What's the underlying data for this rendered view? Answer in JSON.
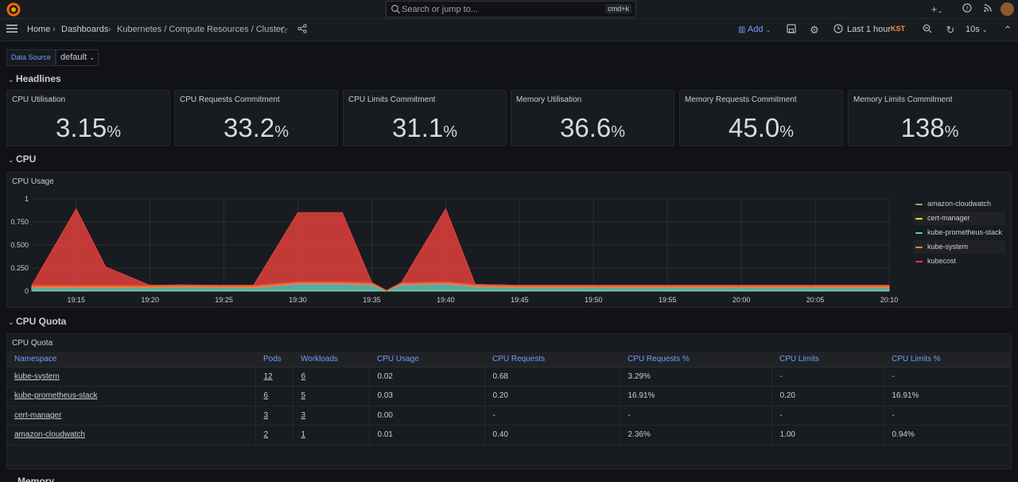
{
  "topbar": {
    "search_placeholder": "Search or jump to...",
    "search_shortcut": "cmd+k",
    "plus_icon": "plus-icon",
    "help_icon": "help-icon",
    "news_icon": "rss-icon"
  },
  "nav": {
    "breadcrumbs": [
      "Home",
      "Dashboards",
      "Kubernetes / Compute Resources / Cluster"
    ],
    "add_label": "Add",
    "time_range": "Last 1 hour",
    "timezone": "KST",
    "refresh_interval": "10s"
  },
  "variables": {
    "datasource_label": "Data Source",
    "datasource_value": "default"
  },
  "rows": {
    "headlines": "Headlines",
    "cpu": "CPU",
    "cpu_quota": "CPU Quota",
    "memory": "Memory"
  },
  "stats": [
    {
      "title": "CPU Utilisation",
      "value": "3.15",
      "unit": "%"
    },
    {
      "title": "CPU Requests Commitment",
      "value": "33.2",
      "unit": "%"
    },
    {
      "title": "CPU Limits Commitment",
      "value": "31.1",
      "unit": "%"
    },
    {
      "title": "Memory Utilisation",
      "value": "36.6",
      "unit": "%"
    },
    {
      "title": "Memory Requests Commitment",
      "value": "45.0",
      "unit": "%"
    },
    {
      "title": "Memory Limits Commitment",
      "value": "138",
      "unit": "%"
    }
  ],
  "cpu_usage": {
    "title": "CPU Usage"
  },
  "chart_data": {
    "type": "area",
    "stacked": true,
    "title": "CPU Usage",
    "x": [
      "19:12",
      "19:15",
      "19:17",
      "19:20",
      "19:22",
      "19:25",
      "19:27",
      "19:30",
      "19:33",
      "19:35",
      "19:36",
      "19:37",
      "19:40",
      "19:42",
      "19:45",
      "19:47",
      "19:50",
      "19:55",
      "20:00",
      "20:05",
      "20:10"
    ],
    "x_ticks": [
      "19:15",
      "19:20",
      "19:25",
      "19:30",
      "19:35",
      "19:40",
      "19:45",
      "19:50",
      "19:55",
      "20:00",
      "20:05",
      "20:10"
    ],
    "y_ticks": [
      "0",
      "0.250",
      "0.500",
      "0.750",
      "1"
    ],
    "ylim": [
      0,
      1
    ],
    "series": [
      {
        "name": "amazon-cloudwatch",
        "color": "#73bf69",
        "values": [
          0.005,
          0.005,
          0.005,
          0.005,
          0.005,
          0.005,
          0.005,
          0.005,
          0.005,
          0.005,
          0.005,
          0.005,
          0.005,
          0.005,
          0.005,
          0.005,
          0.005,
          0.005,
          0.005,
          0.005,
          0.005
        ]
      },
      {
        "name": "cert-manager",
        "color": "#fade2a",
        "values": [
          0.002,
          0.002,
          0.002,
          0.002,
          0.002,
          0.002,
          0.002,
          0.002,
          0.002,
          0.002,
          0.002,
          0.002,
          0.002,
          0.002,
          0.002,
          0.002,
          0.002,
          0.002,
          0.002,
          0.002,
          0.002
        ]
      },
      {
        "name": "kube-prometheus-stack",
        "color": "#5cc3c5",
        "values": [
          0.03,
          0.03,
          0.03,
          0.03,
          0.035,
          0.03,
          0.03,
          0.07,
          0.07,
          0.06,
          0.0,
          0.06,
          0.07,
          0.04,
          0.03,
          0.03,
          0.03,
          0.03,
          0.03,
          0.03,
          0.03
        ]
      },
      {
        "name": "kube-system",
        "color": "#ff7f3f",
        "values": [
          0.025,
          0.025,
          0.025,
          0.025,
          0.025,
          0.025,
          0.025,
          0.025,
          0.025,
          0.025,
          0.0,
          0.025,
          0.025,
          0.025,
          0.025,
          0.025,
          0.025,
          0.025,
          0.025,
          0.025,
          0.025
        ]
      },
      {
        "name": "kubecost",
        "color": "#e0403d",
        "values": [
          0.0,
          0.83,
          0.2,
          0.0,
          0.0,
          0.0,
          0.0,
          0.75,
          0.75,
          0.0,
          0.0,
          0.0,
          0.79,
          0.0,
          0.0,
          0.0,
          0.0,
          0.0,
          0.0,
          0.0,
          0.0
        ]
      }
    ],
    "legend_position": "right",
    "grid": true
  },
  "cpu_quota": {
    "title": "CPU Quota",
    "columns": [
      "Namespace",
      "Pods",
      "Workloads",
      "CPU Usage",
      "CPU Requests",
      "CPU Requests %",
      "CPU Limits",
      "CPU Limits %"
    ],
    "rows": [
      [
        "kube-system",
        "12",
        "6",
        "0.02",
        "0.68",
        "3.29%",
        "-",
        "-"
      ],
      [
        "kube-prometheus-stack",
        "6",
        "5",
        "0.03",
        "0.20",
        "16.91%",
        "0.20",
        "16.91%"
      ],
      [
        "cert-manager",
        "3",
        "3",
        "0.00",
        "-",
        "-",
        "-",
        "-"
      ],
      [
        "amazon-cloudwatch",
        "2",
        "1",
        "0.01",
        "0.40",
        "2.36%",
        "1.00",
        "0.94%"
      ]
    ]
  }
}
